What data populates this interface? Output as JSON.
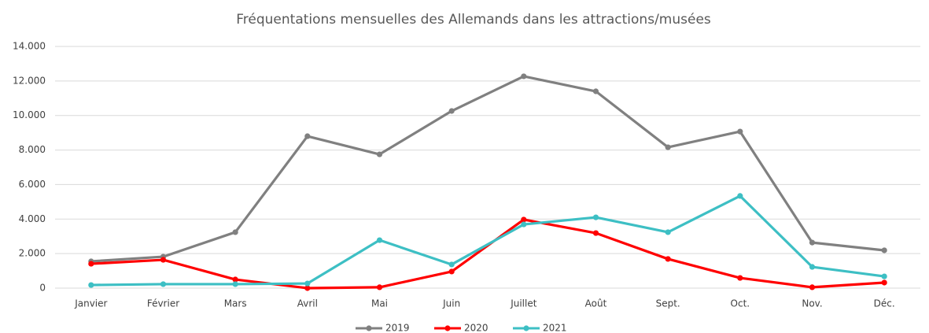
{
  "chart_data": {
    "type": "line",
    "title": "Fréquentations mensuelles des Allemands dans les attractions/musées",
    "categories": [
      "Janvier",
      "Février",
      "Mars",
      "Avril",
      "Mai",
      "Juin",
      "Juillet",
      "Août",
      "Sept.",
      "Oct.",
      "Nov.",
      "Déc."
    ],
    "series": [
      {
        "name": "2019",
        "color": "#808080",
        "values": [
          1550,
          1820,
          3240,
          8800,
          7750,
          10260,
          12270,
          11400,
          8160,
          9070,
          2640,
          2190
        ]
      },
      {
        "name": "2020",
        "color": "#ff0000",
        "values": [
          1410,
          1640,
          500,
          0,
          50,
          960,
          3970,
          3190,
          1690,
          590,
          50,
          320
        ]
      },
      {
        "name": "2021",
        "color": "#3dbfc4",
        "values": [
          180,
          230,
          230,
          270,
          2780,
          1370,
          3690,
          4100,
          3240,
          5340,
          1230,
          680
        ]
      }
    ],
    "ylim": [
      0,
      14000
    ],
    "yticks": [
      0,
      {
        "value": 2000,
        "label": "2.000"
      },
      {
        "value": 4000,
        "label": "4.000"
      },
      {
        "value": 6000,
        "label": "6.000"
      },
      {
        "value": 8000,
        "label": "8.000"
      },
      {
        "value": 10000,
        "label": "10.000"
      },
      {
        "value": 12000,
        "label": "12.000"
      },
      {
        "value": 14000,
        "label": "14.000"
      }
    ],
    "grid": true,
    "legend": "bottom"
  }
}
